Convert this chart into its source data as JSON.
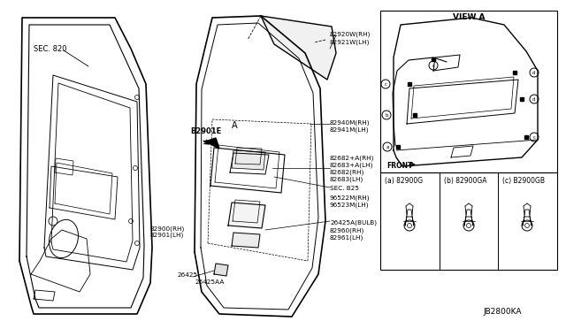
{
  "title": "JB2800KA",
  "bg": "#ffffff",
  "lc": "#000000",
  "sec820": "SEC. 820",
  "b2901e": "B2901E",
  "view_a": "VIEW A",
  "front": "FRONT",
  "label_2920": "82920W(RH)\n82921W(LH)",
  "label_2940": "82940M(RH)\n82941M(LH)",
  "label_2900": "82900(RH)\n82901(LH)",
  "label_2682": "82682+A(RH)\n82683+A(LH)\n82682(RH)\n82683(LH)",
  "label_secb25": "SEC. B25",
  "label_96522": "96522M(RH)\n96523M(LH)",
  "label_26425a": "26425A(BULB)",
  "label_2960": "82960(RH)\n82961(LH)",
  "label_26425": "26425",
  "label_26425aa": "26425AA",
  "leg_a": "(a) 82900G",
  "leg_b": "(b) 82900GA",
  "leg_c": "(c) B2900GB"
}
